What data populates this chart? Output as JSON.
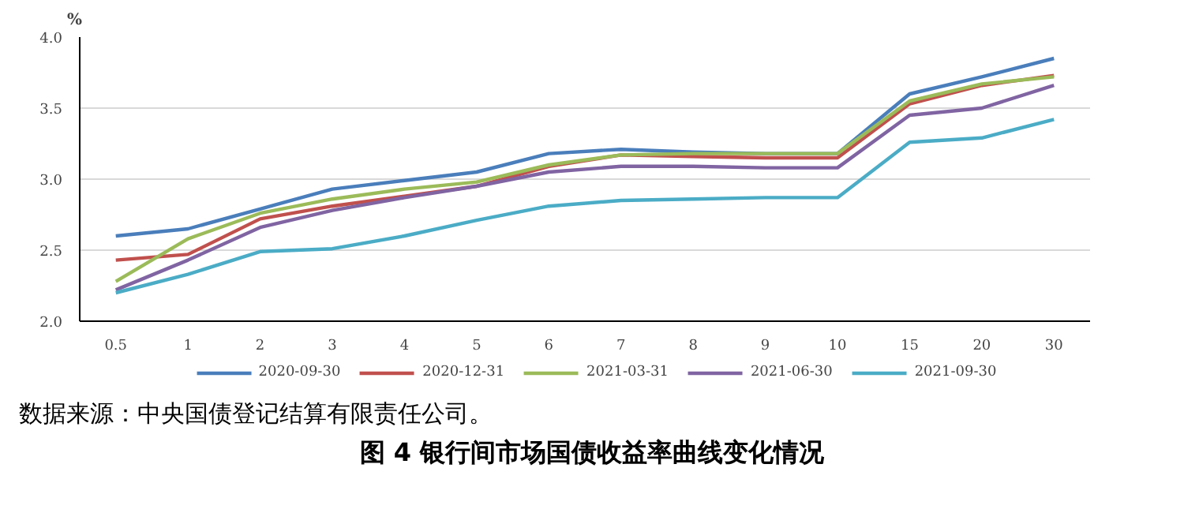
{
  "chart_data": {
    "type": "line",
    "title": "图 4   银行间市场国债收益率曲线变化情况",
    "ylabel": "%",
    "annotations": [
      "数据来源：中央国债登记结算有限责任公司。"
    ],
    "categories": [
      "0.5",
      "1",
      "2",
      "3",
      "4",
      "5",
      "6",
      "7",
      "8",
      "9",
      "10",
      "15",
      "20",
      "30"
    ],
    "ylim": [
      2.0,
      4.0
    ],
    "yticks": [
      {
        "value": 2.0,
        "label": "2.0"
      },
      {
        "value": 2.5,
        "label": "2.5"
      },
      {
        "value": 3.0,
        "label": "3.0"
      },
      {
        "value": 3.5,
        "label": "3.5"
      },
      {
        "value": 4.0,
        "label": "4.0"
      }
    ],
    "grid": "y",
    "legend": "bottom",
    "marker": "none",
    "line_style": "solid",
    "series": [
      {
        "name": "2020-09-30",
        "color": "#4a7ebb",
        "values": [
          2.6,
          2.65,
          2.79,
          2.93,
          2.99,
          3.05,
          3.18,
          3.21,
          3.19,
          3.18,
          3.18,
          3.6,
          3.72,
          3.85
        ]
      },
      {
        "name": "2020-12-31",
        "color": "#c0504d",
        "values": [
          2.43,
          2.47,
          2.72,
          2.81,
          2.88,
          2.95,
          3.09,
          3.17,
          3.16,
          3.15,
          3.15,
          3.53,
          3.66,
          3.73
        ]
      },
      {
        "name": "2021-03-31",
        "color": "#9bbb59",
        "values": [
          2.28,
          2.58,
          2.76,
          2.86,
          2.93,
          2.98,
          3.1,
          3.17,
          3.18,
          3.18,
          3.18,
          3.55,
          3.67,
          3.72
        ]
      },
      {
        "name": "2021-06-30",
        "color": "#8064a2",
        "values": [
          2.22,
          2.43,
          2.66,
          2.78,
          2.87,
          2.95,
          3.05,
          3.09,
          3.09,
          3.08,
          3.08,
          3.45,
          3.5,
          3.66
        ]
      },
      {
        "name": "2021-09-30",
        "color": "#4bacc6",
        "values": [
          2.2,
          2.33,
          2.49,
          2.51,
          2.6,
          2.71,
          2.81,
          2.85,
          2.86,
          2.87,
          2.87,
          3.26,
          3.29,
          3.42
        ]
      }
    ]
  }
}
